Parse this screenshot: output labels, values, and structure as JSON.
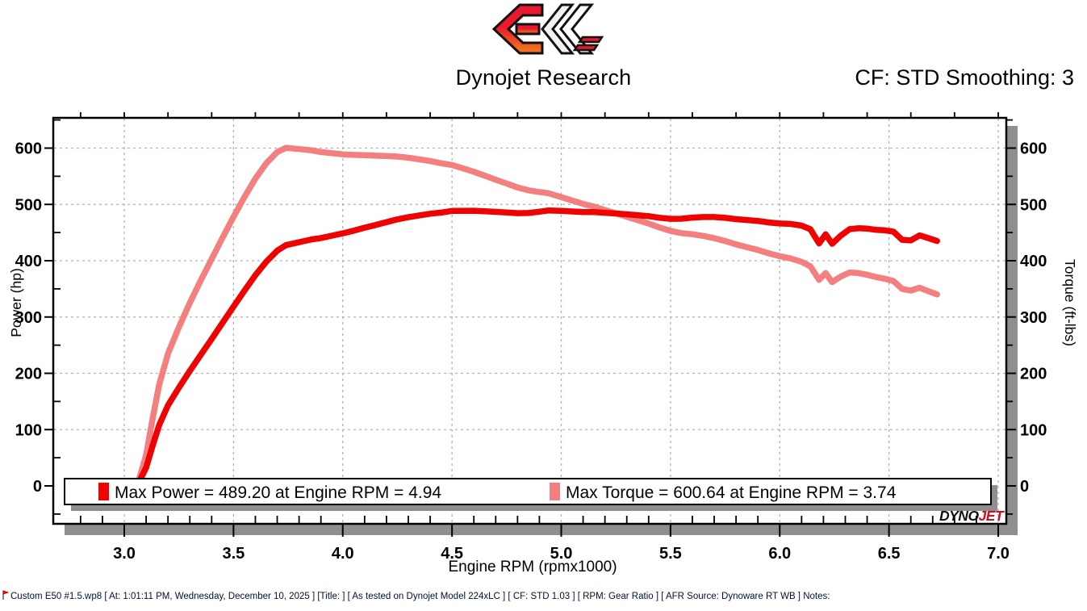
{
  "header": {
    "title": "Dynojet Research",
    "cf_smoothing": "CF: STD Smoothing: 3",
    "logo": "ec-chevron-logo"
  },
  "chart_data": {
    "type": "line",
    "xlabel": "Engine RPM (rpmx1000)",
    "ylabel_left": "Power (hp)",
    "ylabel_right": "Torque (ft-lbs)",
    "xlim": [
      2.68,
      7.04
    ],
    "ylim": [
      -67,
      654
    ],
    "grid": "dashed",
    "x_major_ticks": [
      3.0,
      3.5,
      4.0,
      4.5,
      5.0,
      5.5,
      6.0,
      6.5,
      7.0
    ],
    "x_tick_labels": [
      "3.0",
      "3.5",
      "4.0",
      "4.5",
      "5.0",
      "5.5",
      "6.0",
      "6.5",
      "7.0"
    ],
    "y_major_ticks": [
      0,
      100,
      200,
      300,
      400,
      500,
      600
    ],
    "y_tick_labels": [
      "0",
      "100",
      "200",
      "300",
      "400",
      "500",
      "600"
    ],
    "x": [
      3.07,
      3.1,
      3.13,
      3.16,
      3.2,
      3.25,
      3.3,
      3.35,
      3.4,
      3.45,
      3.5,
      3.55,
      3.6,
      3.65,
      3.7,
      3.74,
      3.78,
      3.82,
      3.86,
      3.9,
      3.95,
      4.0,
      4.05,
      4.1,
      4.15,
      4.2,
      4.25,
      4.3,
      4.35,
      4.4,
      4.45,
      4.5,
      4.55,
      4.6,
      4.65,
      4.7,
      4.75,
      4.8,
      4.85,
      4.9,
      4.94,
      5.0,
      5.05,
      5.1,
      5.15,
      5.2,
      5.25,
      5.3,
      5.35,
      5.4,
      5.45,
      5.5,
      5.55,
      5.6,
      5.65,
      5.7,
      5.75,
      5.8,
      5.85,
      5.9,
      5.95,
      6.0,
      6.05,
      6.1,
      6.14,
      6.18,
      6.21,
      6.24,
      6.28,
      6.32,
      6.36,
      6.4,
      6.44,
      6.48,
      6.52,
      6.56,
      6.6,
      6.64,
      6.68,
      6.72
    ],
    "series": [
      {
        "name": "Power (hp)",
        "axis": "left",
        "color": "#ee0202",
        "values": [
          8.8,
          32.5,
          71.5,
          108.3,
          143.2,
          174.5,
          204.2,
          232.8,
          260.9,
          289.7,
          318.5,
          346.8,
          374.3,
          398.2,
          417.8,
          427.7,
          431.1,
          434.6,
          438.0,
          440.3,
          444.5,
          448.6,
          453.4,
          458.6,
          463.4,
          468.6,
          473.4,
          477.3,
          480.4,
          483.4,
          485.5,
          488.4,
          488.6,
          488.7,
          487.8,
          486.8,
          485.7,
          484.4,
          484.8,
          487.0,
          489.2,
          488.4,
          487.5,
          486.5,
          486.4,
          485.1,
          483.8,
          482.4,
          480.8,
          479.1,
          476.3,
          474.4,
          474.5,
          476.6,
          477.6,
          477.5,
          476.2,
          473.8,
          472.3,
          470.7,
          467.9,
          466.1,
          465.4,
          462.3,
          455.9,
          430.7,
          446.9,
          430.1,
          444.8,
          456.1,
          457.7,
          456.9,
          454.9,
          454.0,
          451.8,
          437.2,
          436.0,
          445.0,
          440.1,
          435.0
        ]
      },
      {
        "name": "Torque (ft-lbs)",
        "axis": "right",
        "color": "#f47f7f",
        "values": [
          15,
          55,
          120,
          180,
          235,
          282,
          325,
          365,
          403,
          441,
          478,
          513,
          546,
          573,
          593,
          600.6,
          599,
          597.5,
          596,
          593,
          591,
          589,
          588,
          587.5,
          586.5,
          586,
          585,
          583,
          580,
          577,
          573,
          570,
          564,
          558,
          551,
          544,
          537,
          530,
          525,
          522,
          520,
          513,
          507,
          501,
          496,
          490,
          484,
          478,
          472,
          466,
          459,
          453,
          449,
          447,
          444,
          440,
          435,
          429,
          424,
          419,
          413,
          408,
          404,
          398,
          390,
          366,
          378,
          362,
          372,
          379,
          378,
          375,
          371,
          368,
          364,
          350,
          347,
          352,
          346,
          340
        ]
      }
    ],
    "annotations": {
      "max_power": {
        "value": 489.2,
        "rpm": 4.94
      },
      "max_torque": {
        "value": 600.64,
        "rpm": 3.74
      }
    },
    "legend": {
      "position": "bottom-inside",
      "items": [
        {
          "label": "Max Power = 489.20 at Engine RPM = 4.94",
          "color": "#ee0202"
        },
        {
          "label": "Max Torque = 600.64 at Engine RPM = 3.74",
          "color": "#f47f7f"
        }
      ]
    },
    "watermark": {
      "dyno": "DYNO",
      "jet": "JET"
    }
  },
  "footer": {
    "flag_icon": "red-flag",
    "text": "Custom E50 #1.5.wp8 [ At: 1:01:11 PM, Wednesday, December 10, 2025 ] [Title: ] [ As tested on Dynojet Model 224xLC ] [ CF: STD 1.03 ] [ RPM: Gear Ratio ] [ AFR Source: Dynoware RT WB ] Notes:"
  },
  "colors": {
    "power": "#ee0202",
    "torque": "#f47f7f",
    "grid": "#b3b3b3",
    "shadow": "#8f8f8f",
    "footer_text": "#001133"
  }
}
